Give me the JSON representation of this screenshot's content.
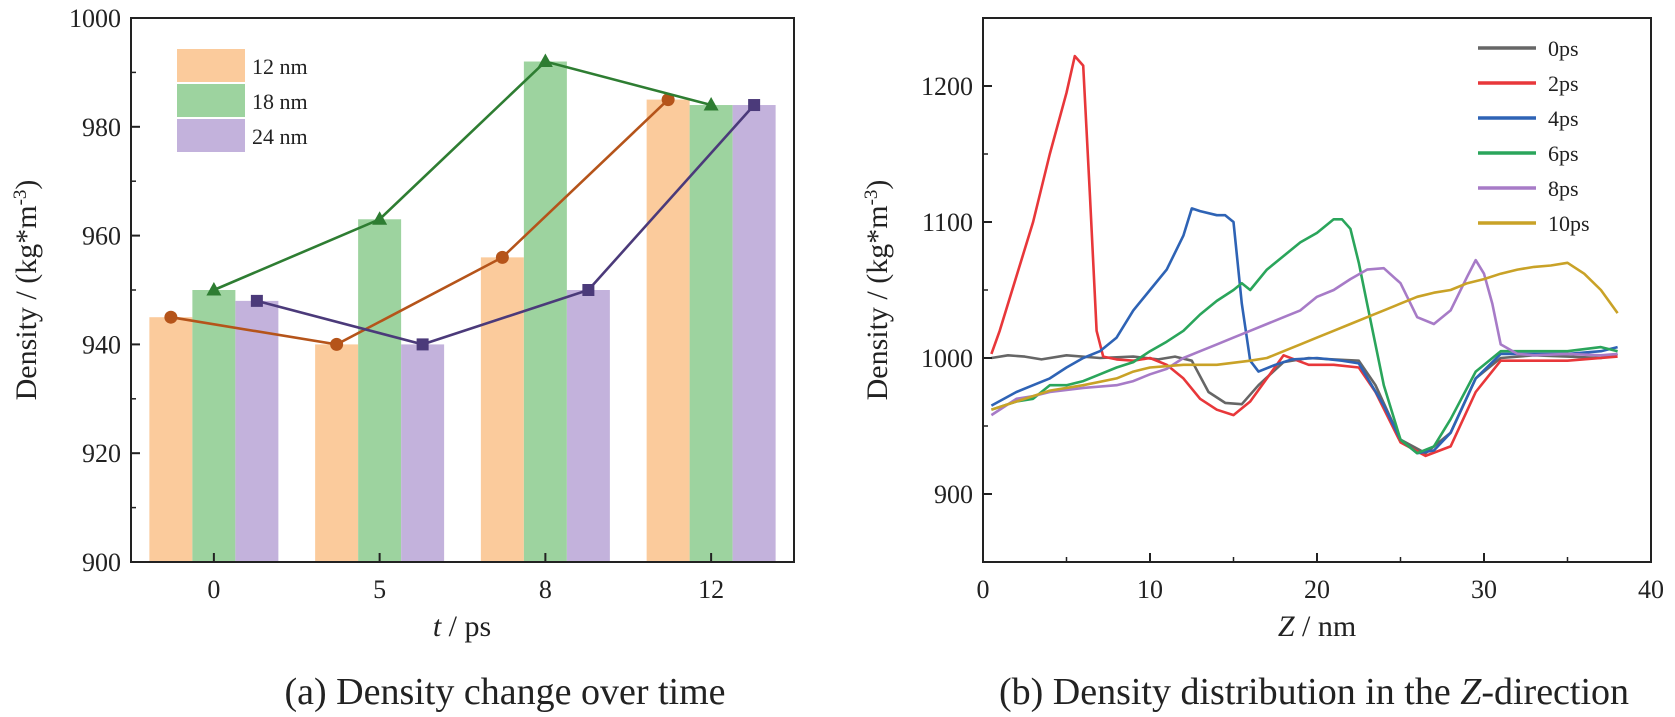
{
  "chart_data": [
    {
      "type": "bar",
      "caption": "(a) Density change over time",
      "caption_prefix": "(a) Density change over time",
      "xlabel_italic": "t",
      "xlabel_rest": " / ps",
      "ylabel": "Density / (kg*m",
      "ylabel_sup": "-3",
      "ylabel_close": ")",
      "categories": [
        "0",
        "5",
        "8",
        "12"
      ],
      "ylim": [
        900,
        1000
      ],
      "yticks": [
        "900",
        "920",
        "940",
        "960",
        "980",
        "1000"
      ],
      "series": [
        {
          "name": "12 nm",
          "bar_color": "#FBCB9C",
          "line_color": "#B5541A",
          "marker": "circle",
          "values": [
            945,
            940,
            956,
            985
          ]
        },
        {
          "name": "18 nm",
          "bar_color": "#9DD39F",
          "line_color": "#2E7D32",
          "marker": "triangle",
          "values": [
            950,
            963,
            992,
            984
          ]
        },
        {
          "name": "24 nm",
          "bar_color": "#C3B2DC",
          "line_color": "#4B3A7A",
          "marker": "square",
          "values": [
            948,
            940,
            950,
            984
          ]
        }
      ],
      "legend": "top-left"
    },
    {
      "type": "line",
      "caption_prefix": "(b) Density distribution in the ",
      "caption_italic": "Z",
      "caption_suffix": "-direction",
      "xlabel_italic": "Z",
      "xlabel_rest": " / nm",
      "ylabel": "Density / (kg*m",
      "ylabel_sup": "-3",
      "ylabel_close": ")",
      "xlim": [
        0,
        40
      ],
      "ylim": [
        850,
        1250
      ],
      "xticks": [
        "0",
        "10",
        "20",
        "30",
        "40"
      ],
      "yticks": [
        "900",
        "1000",
        "1100",
        "1200"
      ],
      "legend": "top-right",
      "series": [
        {
          "name": "0ps",
          "color": "#666666",
          "points": [
            [
              0.5,
              1000
            ],
            [
              1.5,
              1002
            ],
            [
              2.5,
              1001
            ],
            [
              3.5,
              999
            ],
            [
              5,
              1002
            ],
            [
              7,
              1000
            ],
            [
              9,
              1001
            ],
            [
              10.5,
              999
            ],
            [
              11.5,
              1001
            ],
            [
              12.5,
              998
            ],
            [
              13.5,
              975
            ],
            [
              14.5,
              967
            ],
            [
              15.5,
              966
            ],
            [
              16.5,
              980
            ],
            [
              18,
              997
            ],
            [
              19.5,
              1000
            ],
            [
              21,
              999
            ],
            [
              22.5,
              998
            ],
            [
              23.5,
              980
            ],
            [
              25,
              940
            ],
            [
              26.5,
              930
            ],
            [
              28,
              945
            ],
            [
              29.5,
              985
            ],
            [
              31,
              1000
            ],
            [
              33,
              1002
            ],
            [
              35,
              1001
            ],
            [
              37,
              1000
            ],
            [
              38,
              1003
            ]
          ]
        },
        {
          "name": "2ps",
          "color": "#E8373A",
          "points": [
            [
              0.5,
              1003
            ],
            [
              1,
              1020
            ],
            [
              2,
              1060
            ],
            [
              3,
              1100
            ],
            [
              4,
              1150
            ],
            [
              5,
              1195
            ],
            [
              5.5,
              1222
            ],
            [
              6,
              1215
            ],
            [
              6.4,
              1120
            ],
            [
              6.8,
              1020
            ],
            [
              7.2,
              1001
            ],
            [
              8,
              999
            ],
            [
              9,
              998
            ],
            [
              10,
              1000
            ],
            [
              11,
              995
            ],
            [
              12,
              985
            ],
            [
              13,
              970
            ],
            [
              14,
              962
            ],
            [
              15,
              958
            ],
            [
              16,
              968
            ],
            [
              17,
              985
            ],
            [
              18,
              1002
            ],
            [
              19.5,
              995
            ],
            [
              21,
              995
            ],
            [
              22.5,
              993
            ],
            [
              23.5,
              975
            ],
            [
              25,
              938
            ],
            [
              26.5,
              928
            ],
            [
              28,
              935
            ],
            [
              29.5,
              975
            ],
            [
              31,
              998
            ],
            [
              33,
              998
            ],
            [
              35,
              998
            ],
            [
              37,
              1000
            ],
            [
              38,
              1001
            ]
          ]
        },
        {
          "name": "4ps",
          "color": "#2E63B5",
          "points": [
            [
              0.5,
              965
            ],
            [
              2,
              975
            ],
            [
              3,
              980
            ],
            [
              4,
              985
            ],
            [
              5,
              993
            ],
            [
              6,
              1000
            ],
            [
              7,
              1005
            ],
            [
              8,
              1015
            ],
            [
              9,
              1035
            ],
            [
              10,
              1050
            ],
            [
              11,
              1065
            ],
            [
              12,
              1090
            ],
            [
              12.5,
              1110
            ],
            [
              13,
              1108
            ],
            [
              14,
              1105
            ],
            [
              14.5,
              1105
            ],
            [
              15,
              1100
            ],
            [
              15.5,
              1040
            ],
            [
              16,
              998
            ],
            [
              16.5,
              990
            ],
            [
              17.5,
              995
            ],
            [
              18.5,
              999
            ],
            [
              20,
              1000
            ],
            [
              21.5,
              998
            ],
            [
              22.5,
              996
            ],
            [
              24,
              965
            ],
            [
              25,
              940
            ],
            [
              26,
              930
            ],
            [
              27,
              932
            ],
            [
              28,
              945
            ],
            [
              29.5,
              985
            ],
            [
              31,
              1003
            ],
            [
              33,
              1003
            ],
            [
              35,
              1003
            ],
            [
              37,
              1005
            ],
            [
              38,
              1008
            ]
          ]
        },
        {
          "name": "6ps",
          "color": "#2AA55B",
          "points": [
            [
              0.5,
              962
            ],
            [
              2,
              968
            ],
            [
              3,
              970
            ],
            [
              4,
              980
            ],
            [
              5,
              980
            ],
            [
              6,
              983
            ],
            [
              7,
              988
            ],
            [
              8,
              993
            ],
            [
              9,
              997
            ],
            [
              10,
              1005
            ],
            [
              11,
              1012
            ],
            [
              12,
              1020
            ],
            [
              13,
              1032
            ],
            [
              14,
              1042
            ],
            [
              15,
              1050
            ],
            [
              15.5,
              1055
            ],
            [
              16,
              1050
            ],
            [
              17,
              1065
            ],
            [
              18,
              1075
            ],
            [
              19,
              1085
            ],
            [
              20,
              1092
            ],
            [
              21,
              1102
            ],
            [
              21.5,
              1102
            ],
            [
              22,
              1095
            ],
            [
              22.5,
              1070
            ],
            [
              23,
              1040
            ],
            [
              24,
              980
            ],
            [
              25,
              940
            ],
            [
              26,
              930
            ],
            [
              27,
              935
            ],
            [
              28,
              955
            ],
            [
              29.5,
              990
            ],
            [
              31,
              1005
            ],
            [
              33,
              1005
            ],
            [
              35,
              1005
            ],
            [
              37,
              1008
            ],
            [
              38,
              1005
            ]
          ]
        },
        {
          "name": "8ps",
          "color": "#A77BC7",
          "points": [
            [
              0.5,
              958
            ],
            [
              2,
              970
            ],
            [
              3,
              972
            ],
            [
              4,
              975
            ],
            [
              6,
              978
            ],
            [
              8,
              980
            ],
            [
              9,
              983
            ],
            [
              10,
              988
            ],
            [
              11,
              992
            ],
            [
              12,
              1000
            ],
            [
              13,
              1005
            ],
            [
              14,
              1010
            ],
            [
              15,
              1015
            ],
            [
              16,
              1020
            ],
            [
              17,
              1025
            ],
            [
              18,
              1030
            ],
            [
              19,
              1035
            ],
            [
              20,
              1045
            ],
            [
              21,
              1050
            ],
            [
              22,
              1058
            ],
            [
              23,
              1065
            ],
            [
              24,
              1066
            ],
            [
              25,
              1055
            ],
            [
              26,
              1030
            ],
            [
              27,
              1025
            ],
            [
              28,
              1035
            ],
            [
              29,
              1060
            ],
            [
              29.5,
              1072
            ],
            [
              30,
              1062
            ],
            [
              30.5,
              1040
            ],
            [
              31,
              1010
            ],
            [
              32,
              1003
            ],
            [
              33,
              1002
            ],
            [
              35,
              1003
            ],
            [
              37,
              1002
            ],
            [
              38,
              1003
            ]
          ]
        },
        {
          "name": "10ps",
          "color": "#C9A227",
          "points": [
            [
              0.5,
              962
            ],
            [
              2,
              968
            ],
            [
              3,
              972
            ],
            [
              4,
              976
            ],
            [
              6,
              980
            ],
            [
              8,
              985
            ],
            [
              9,
              990
            ],
            [
              10,
              993
            ],
            [
              12,
              995
            ],
            [
              14,
              995
            ],
            [
              16,
              998
            ],
            [
              17,
              1000
            ],
            [
              18,
              1005
            ],
            [
              19,
              1010
            ],
            [
              20,
              1015
            ],
            [
              21,
              1020
            ],
            [
              22,
              1025
            ],
            [
              23,
              1030
            ],
            [
              24,
              1035
            ],
            [
              25,
              1040
            ],
            [
              26,
              1045
            ],
            [
              27,
              1048
            ],
            [
              28,
              1050
            ],
            [
              29,
              1055
            ],
            [
              30,
              1058
            ],
            [
              31,
              1062
            ],
            [
              32,
              1065
            ],
            [
              33,
              1067
            ],
            [
              34,
              1068
            ],
            [
              35,
              1070
            ],
            [
              36,
              1062
            ],
            [
              37,
              1050
            ],
            [
              38,
              1033
            ]
          ]
        }
      ]
    }
  ]
}
